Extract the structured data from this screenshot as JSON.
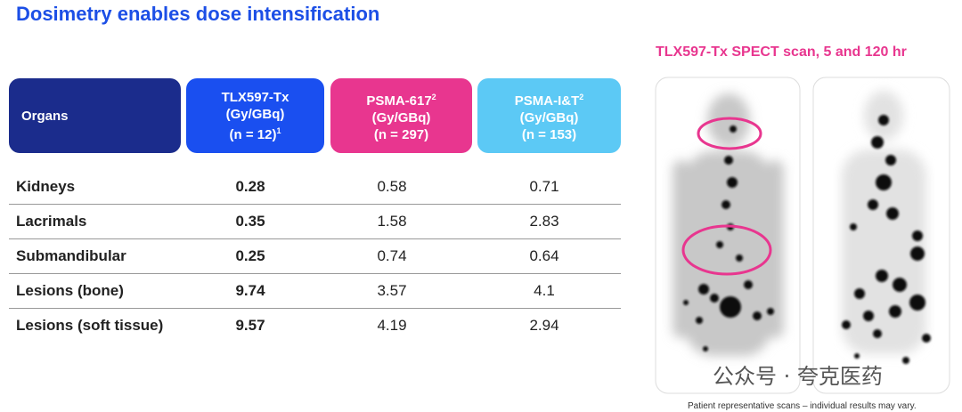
{
  "title": "Dosimetry enables dose intensification",
  "table": {
    "headers": [
      {
        "name": "Organs"
      },
      {
        "name": "TLX597-Tx",
        "unit": "(Gy/GBq)",
        "n": "(n = 12)",
        "n_sup": "1"
      },
      {
        "name": "PSMA-617",
        "name_sup": "2",
        "unit": "(Gy/GBq)",
        "n": "(n = 297)"
      },
      {
        "name": "PSMA-I&T",
        "name_sup": "2",
        "unit": "(Gy/GBq)",
        "n": "(n = 153)"
      }
    ],
    "rows": [
      [
        "Kidneys",
        "0.28",
        "0.58",
        "0.71"
      ],
      [
        "Lacrimals",
        "0.35",
        "1.58",
        "2.83"
      ],
      [
        "Submandibular",
        "0.25",
        "0.74",
        "0.64"
      ],
      [
        "Lesions (bone)",
        "9.74",
        "3.57",
        "4.1"
      ],
      [
        "Lesions (soft tissue)",
        "9.57",
        "4.19",
        "2.94"
      ]
    ]
  },
  "scan": {
    "title": "TLX597-Tx SPECT scan, 5 and 120 hr",
    "caption": "Patient representative scans – individual results may vary."
  },
  "watermark": "公众号 · 夸克医药"
}
